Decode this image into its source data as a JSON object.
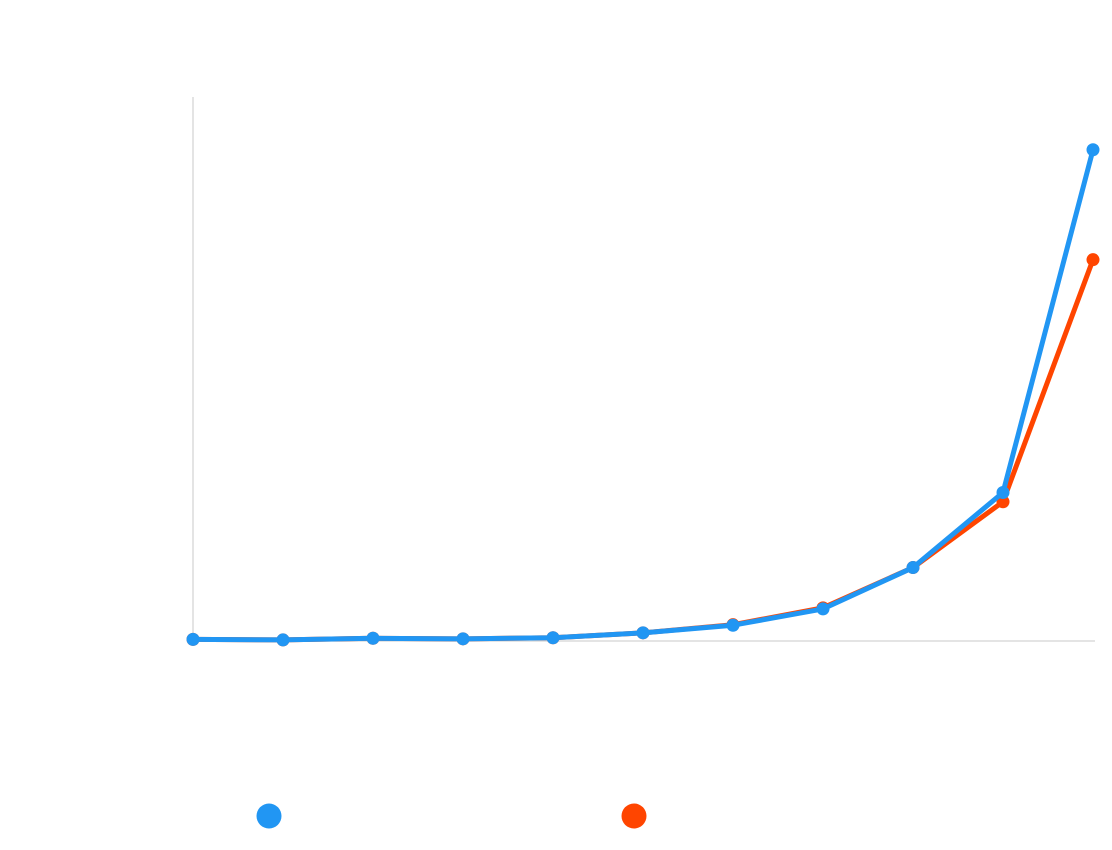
{
  "chart_data": {
    "type": "line",
    "x": [
      0,
      1,
      2,
      3,
      4,
      5,
      6,
      7,
      8,
      9,
      10
    ],
    "ylim": [
      0,
      100
    ],
    "grid": false,
    "legend": "bottom",
    "series": [
      {
        "color": "#2196F3",
        "values": [
          0.3,
          0.2,
          0.5,
          0.4,
          0.6,
          1.5,
          2.9,
          5.9,
          13.5,
          27.3,
          90.3
        ]
      },
      {
        "color": "#FF4500",
        "values": [
          0.3,
          0.2,
          0.5,
          0.4,
          0.6,
          1.5,
          3.0,
          6.1,
          13.5,
          25.6,
          70.1
        ]
      }
    ]
  }
}
